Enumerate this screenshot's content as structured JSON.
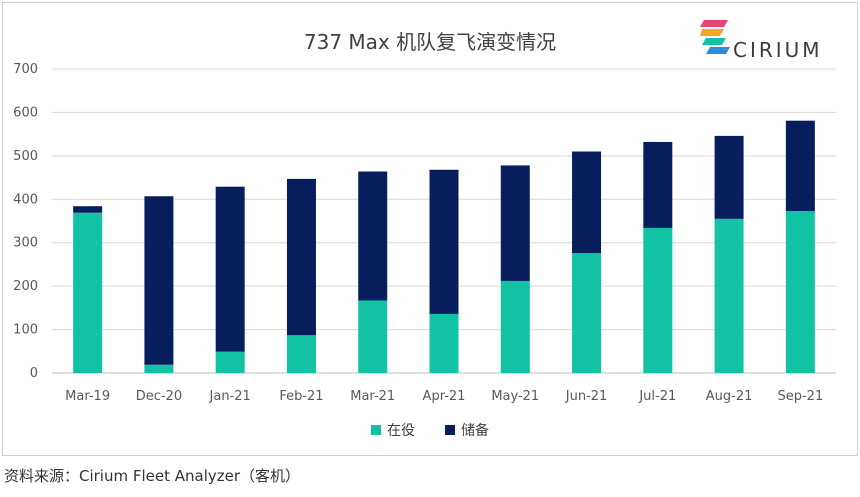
{
  "chart_data": {
    "type": "bar",
    "stacked": true,
    "title": "737 Max 机队复飞演变情况",
    "categories": [
      "Mar-19",
      "Dec-20",
      "Jan-21",
      "Feb-21",
      "Mar-21",
      "Apr-21",
      "May-21",
      "Jun-21",
      "Jul-21",
      "Aug-21",
      "Sep-21"
    ],
    "series": [
      {
        "name": "在役",
        "color": "#12c3a3",
        "values": [
          369,
          19,
          49,
          87,
          167,
          136,
          212,
          276,
          334,
          355,
          373
        ]
      },
      {
        "name": "储备",
        "color": "#061f5c",
        "values": [
          15,
          388,
          380,
          360,
          297,
          332,
          266,
          234,
          198,
          191,
          208
        ]
      }
    ],
    "ylim": [
      0,
      700
    ],
    "yticks": [
      0,
      100,
      200,
      300,
      400,
      500,
      600,
      700
    ],
    "grid": true,
    "legend_position": "bottom"
  },
  "logo": {
    "text": "CIRIUM",
    "colors": [
      "#e6437a",
      "#f5a623",
      "#12c3a3",
      "#2a8fd6"
    ]
  },
  "source": "资料来源：Cirium Fleet Analyzer（客机）"
}
